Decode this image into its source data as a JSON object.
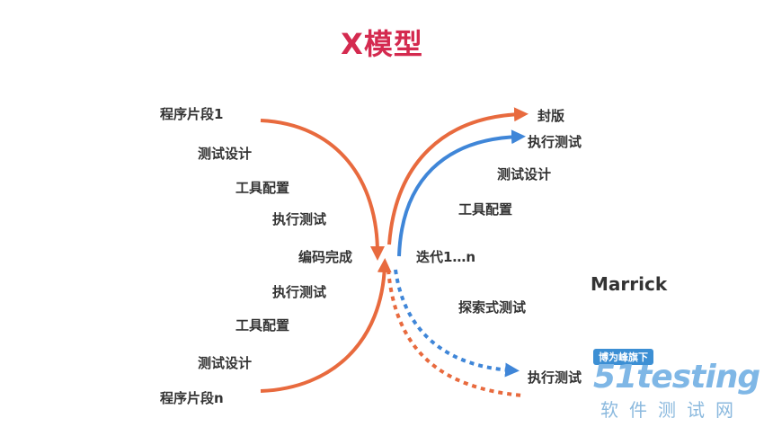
{
  "title": "X模型",
  "left_upper": [
    "程序片段1",
    "测试设计",
    "工具配置",
    "执行测试"
  ],
  "center": "编码完成",
  "left_lower": [
    "执行测试",
    "工具配置",
    "测试设计",
    "程序片段n"
  ],
  "right_upper": [
    "封版",
    "执行测试",
    "测试设计",
    "工具配置"
  ],
  "iteration": "迭代1…n",
  "right_lower": [
    "探索式测试",
    "执行测试"
  ],
  "author": "Marrick",
  "watermark": {
    "badge": "博为峰旗下",
    "logo": "51testing",
    "sub": "软件测试网"
  },
  "colors": {
    "title": "#d42a4f",
    "orange": "#e86a3e",
    "blue": "#3f86d8"
  }
}
